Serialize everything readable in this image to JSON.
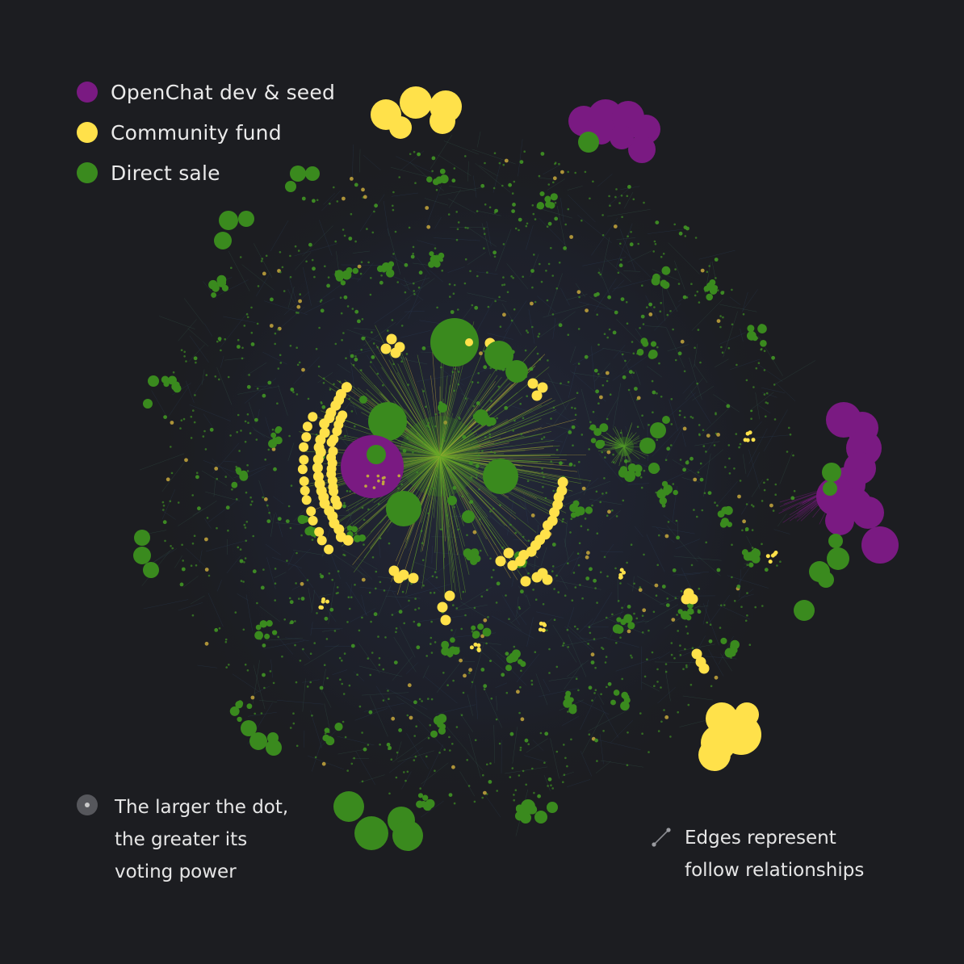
{
  "colors": {
    "background": "#1c1d21",
    "openchat": "#7a1a82",
    "community": "#ffe14a",
    "direct": "#3a8a1e"
  },
  "legend": {
    "items": [
      {
        "label": "OpenChat dev & seed",
        "color": "#7a1a82",
        "icon": "purple-dot"
      },
      {
        "label": "Community fund",
        "color": "#ffe14a",
        "icon": "yellow-dot"
      },
      {
        "label": "Direct sale",
        "color": "#3a8a1e",
        "icon": "green-dot"
      }
    ]
  },
  "notes": {
    "size": {
      "lines": [
        "The larger the dot,",
        "the greater its",
        "voting power"
      ],
      "icon": "dot-size-icon"
    },
    "edges": {
      "lines": [
        "Edges represent",
        "follow relationships"
      ],
      "icon": "edge-icon"
    }
  }
}
